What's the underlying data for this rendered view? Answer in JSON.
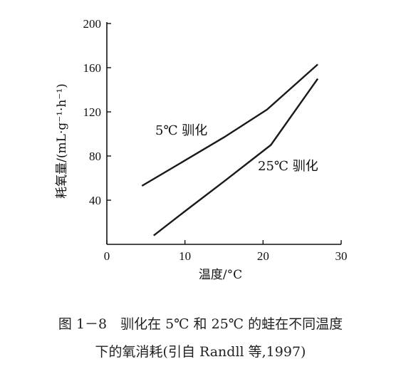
{
  "chart_data": {
    "type": "line",
    "xlabel": "温度/°C",
    "ylabel": "耗氧量/(mL·g⁻¹·h⁻¹)",
    "xlim": [
      0,
      30
    ],
    "ylim": [
      0,
      200
    ],
    "xticks": [
      0,
      10,
      20,
      30
    ],
    "yticks": [
      40,
      80,
      120,
      160,
      200
    ],
    "grid": false,
    "series": [
      {
        "name": "5℃ 驯化",
        "x": [
          4.5,
          10,
          15,
          20.5,
          27
        ],
        "y": [
          53,
          76,
          97,
          122,
          163
        ]
      },
      {
        "name": "25℃ 驯化",
        "x": [
          6,
          10,
          15,
          21,
          27
        ],
        "y": [
          8,
          30,
          57,
          90,
          150
        ]
      }
    ]
  },
  "caption": {
    "line1": "图 1－8　驯化在 5℃ 和 25℃ 的蛙在不同温度",
    "line2": "下的氧消耗(引自 Randll 等,1997)"
  }
}
